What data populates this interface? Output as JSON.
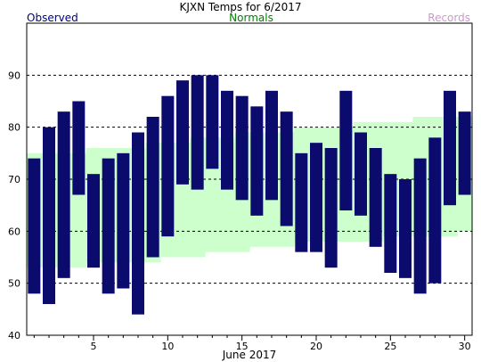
{
  "chart_data": {
    "type": "bar",
    "title": "KJXN Temps for 6/2017",
    "legend": {
      "observed": "Observed",
      "normals": "Normals",
      "records": "Records"
    },
    "xlabel": "June 2017",
    "ylabel": "",
    "xlim": [
      0.5,
      30.5
    ],
    "ylim": [
      40,
      100
    ],
    "x_ticks": [
      5,
      10,
      15,
      20,
      25,
      30
    ],
    "y_ticks": [
      40,
      50,
      60,
      70,
      80,
      90
    ],
    "grid": true,
    "colors": {
      "observed": "#0b0b6e",
      "normals": "#ccffcc",
      "normals_text": "#008000",
      "records_text": "#cc99cc",
      "legend_observed_text": "#000080"
    },
    "days": [
      1,
      2,
      3,
      4,
      5,
      6,
      7,
      8,
      9,
      10,
      11,
      12,
      13,
      14,
      15,
      16,
      17,
      18,
      19,
      20,
      21,
      22,
      23,
      24,
      25,
      26,
      27,
      28,
      29,
      30
    ],
    "observed": [
      {
        "high": 74,
        "low": 48
      },
      {
        "high": 80,
        "low": 46
      },
      {
        "high": 83,
        "low": 51
      },
      {
        "high": 85,
        "low": 67
      },
      {
        "high": 71,
        "low": 53
      },
      {
        "high": 74,
        "low": 48
      },
      {
        "high": 75,
        "low": 49
      },
      {
        "high": 79,
        "low": 44
      },
      {
        "high": 82,
        "low": 55
      },
      {
        "high": 86,
        "low": 59
      },
      {
        "high": 89,
        "low": 69
      },
      {
        "high": 90,
        "low": 68
      },
      {
        "high": 90,
        "low": 72
      },
      {
        "high": 87,
        "low": 68
      },
      {
        "high": 86,
        "low": 66
      },
      {
        "high": 84,
        "low": 63
      },
      {
        "high": 87,
        "low": 66
      },
      {
        "high": 83,
        "low": 61
      },
      {
        "high": 75,
        "low": 56
      },
      {
        "high": 77,
        "low": 56
      },
      {
        "high": 76,
        "low": 53
      },
      {
        "high": 87,
        "low": 64
      },
      {
        "high": 79,
        "low": 63
      },
      {
        "high": 76,
        "low": 57
      },
      {
        "high": 71,
        "low": 52
      },
      {
        "high": 70,
        "low": 51
      },
      {
        "high": 74,
        "low": 48
      },
      {
        "high": 78,
        "low": 50
      },
      {
        "high": 87,
        "low": 65
      },
      {
        "high": 83,
        "low": 67
      }
    ],
    "normals": [
      {
        "high": 75,
        "low": 53
      },
      {
        "high": 75,
        "low": 53
      },
      {
        "high": 75,
        "low": 53
      },
      {
        "high": 75,
        "low": 53
      },
      {
        "high": 76,
        "low": 54
      },
      {
        "high": 76,
        "low": 54
      },
      {
        "high": 76,
        "low": 54
      },
      {
        "high": 76,
        "low": 54
      },
      {
        "high": 77,
        "low": 54
      },
      {
        "high": 77,
        "low": 55
      },
      {
        "high": 77,
        "low": 55
      },
      {
        "high": 78,
        "low": 55
      },
      {
        "high": 78,
        "low": 56
      },
      {
        "high": 78,
        "low": 56
      },
      {
        "high": 79,
        "low": 56
      },
      {
        "high": 79,
        "low": 57
      },
      {
        "high": 79,
        "low": 57
      },
      {
        "high": 79,
        "low": 57
      },
      {
        "high": 80,
        "low": 58
      },
      {
        "high": 80,
        "low": 58
      },
      {
        "high": 80,
        "low": 58
      },
      {
        "high": 80,
        "low": 58
      },
      {
        "high": 81,
        "low": 58
      },
      {
        "high": 81,
        "low": 58
      },
      {
        "high": 81,
        "low": 59
      },
      {
        "high": 81,
        "low": 59
      },
      {
        "high": 82,
        "low": 59
      },
      {
        "high": 82,
        "low": 59
      },
      {
        "high": 82,
        "low": 59
      },
      {
        "high": 82,
        "low": 60
      }
    ]
  }
}
